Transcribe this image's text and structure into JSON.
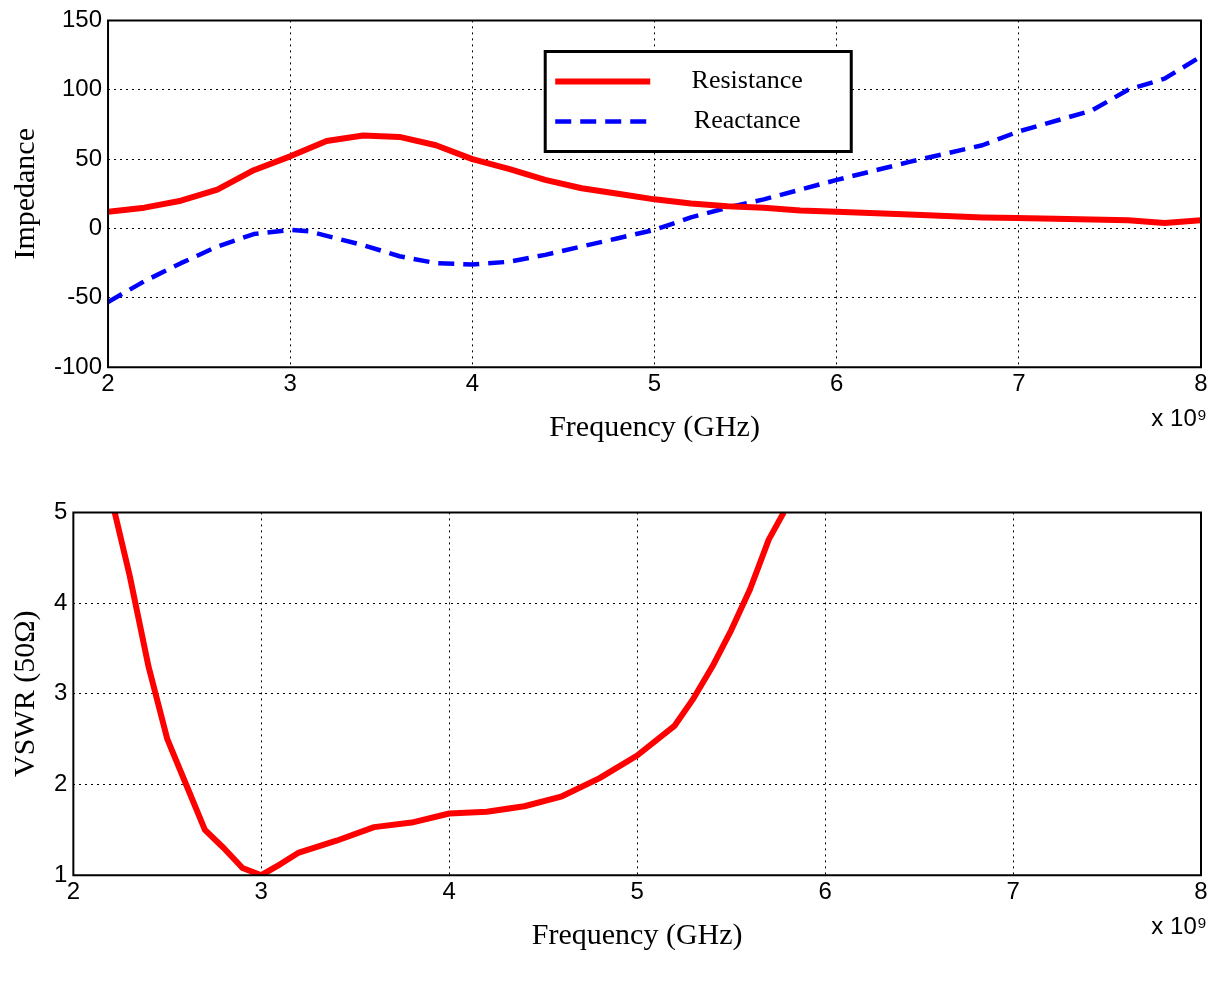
{
  "chart_data": [
    {
      "type": "line",
      "xlabel": "Frequency (GHz)",
      "ylabel": "Impedance",
      "xlim": [
        2,
        8
      ],
      "xticks": [
        2,
        3,
        4,
        5,
        6,
        7,
        8
      ],
      "ylim": [
        -100,
        150
      ],
      "yticks": [
        -100,
        -50,
        0,
        50,
        100,
        150
      ],
      "grid": true,
      "legend": "top",
      "marker": "none",
      "annotations": [
        "x 10⁹"
      ],
      "series": [
        {
          "name": "Resistance",
          "color": "#ff0000",
          "line_style": "solid",
          "x": [
            2.0,
            2.2,
            2.4,
            2.6,
            2.8,
            3.0,
            3.2,
            3.4,
            3.6,
            3.8,
            4.0,
            4.2,
            4.4,
            4.6,
            4.8,
            5.0,
            5.2,
            5.4,
            5.6,
            5.8,
            6.0,
            6.4,
            6.8,
            7.2,
            7.6,
            7.8,
            8.0
          ],
          "values": [
            12,
            15,
            20,
            28,
            42,
            52,
            63,
            67,
            66,
            60,
            50,
            43,
            35,
            29,
            25,
            21,
            18,
            16,
            15,
            13,
            12,
            10,
            8,
            7,
            6,
            4,
            6
          ]
        },
        {
          "name": "Reactance",
          "color": "#0000ff",
          "line_style": "dashed",
          "x": [
            2.0,
            2.2,
            2.4,
            2.6,
            2.8,
            3.0,
            3.1,
            3.4,
            3.6,
            3.8,
            4.0,
            4.2,
            4.4,
            4.6,
            4.8,
            5.0,
            5.2,
            5.4,
            5.6,
            5.8,
            6.0,
            6.4,
            6.8,
            7.0,
            7.4,
            7.6,
            7.8,
            8.0
          ],
          "values": [
            -53,
            -38,
            -25,
            -13,
            -4,
            -1,
            -2,
            -12,
            -20,
            -25,
            -26,
            -24,
            -19,
            -13,
            -7,
            -1,
            8,
            15,
            21,
            28,
            35,
            48,
            60,
            70,
            85,
            100,
            108,
            124
          ]
        }
      ]
    },
    {
      "type": "line",
      "xlabel": "Frequency (GHz)",
      "ylabel": "VSWR (50Ω)",
      "xlim": [
        2,
        8
      ],
      "xticks": [
        2,
        3,
        4,
        5,
        6,
        7,
        8
      ],
      "ylim": [
        1,
        5
      ],
      "yticks": [
        1,
        2,
        3,
        4,
        5
      ],
      "grid": true,
      "marker": "none",
      "annotations": [
        "x 10⁹"
      ],
      "series": [
        {
          "color": "#ff0000",
          "line_style": "solid",
          "x": [
            2.22,
            2.3,
            2.4,
            2.5,
            2.6,
            2.7,
            2.8,
            2.9,
            3.0,
            3.1,
            3.2,
            3.4,
            3.6,
            3.8,
            4.0,
            4.2,
            4.4,
            4.6,
            4.8,
            5.0,
            5.2,
            5.3,
            5.4,
            5.5,
            5.6,
            5.7,
            5.78
          ],
          "values": [
            5,
            4.3,
            3.3,
            2.5,
            2.0,
            1.5,
            1.3,
            1.08,
            1.0,
            1.12,
            1.25,
            1.38,
            1.53,
            1.58,
            1.68,
            1.7,
            1.76,
            1.87,
            2.07,
            2.32,
            2.65,
            2.95,
            3.3,
            3.7,
            4.15,
            4.7,
            5.0
          ]
        }
      ]
    }
  ]
}
